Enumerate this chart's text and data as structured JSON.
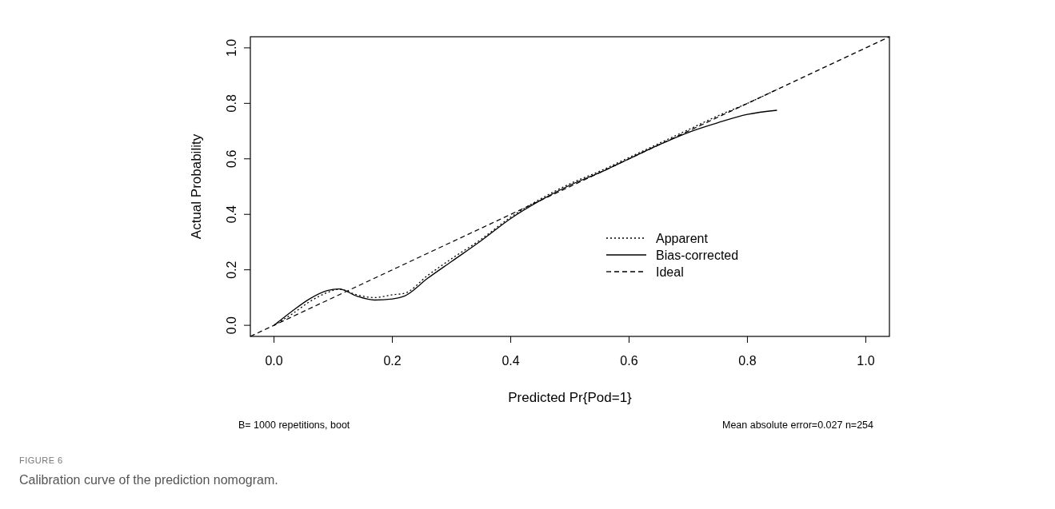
{
  "chart_data": {
    "type": "line",
    "title": "FIGURE 6",
    "subtitle": "Calibration curve of the prediction nomogram.",
    "xlabel": "Predicted Pr{Pod=1}",
    "ylabel": "Actual Probability",
    "annotations": [
      "B= 1000 repetitions, boot",
      "Mean absolute error=0.027 n=254"
    ],
    "xlim": [
      -0.04,
      1.04
    ],
    "ylim": [
      -0.04,
      1.04
    ],
    "xticks": [
      {
        "value": 0,
        "label": "0.0"
      },
      0.2,
      0.4,
      0.6,
      0.8,
      {
        "value": 1,
        "label": "1.0"
      }
    ],
    "yticks": [
      {
        "value": 0,
        "label": "0.0"
      },
      0.2,
      0.4,
      0.6,
      0.8,
      {
        "value": 1,
        "label": "1.0"
      }
    ],
    "grid": false,
    "legend": "bottom right",
    "marker": "none",
    "series": [
      {
        "name": "Apparent",
        "color": "#000000",
        "line_style": "dotted",
        "x": [
          0,
          0.03,
          0.06,
          0.09,
          0.11,
          0.14,
          0.17,
          0.2,
          0.22,
          0.26,
          0.3,
          0.35,
          0.4,
          0.45,
          0.5,
          0.55,
          0.6,
          0.65,
          0.7,
          0.75,
          0.8,
          0.85
        ],
        "values": [
          0,
          0.04,
          0.085,
          0.118,
          0.13,
          0.11,
          0.1,
          0.11,
          0.115,
          0.18,
          0.24,
          0.31,
          0.39,
          0.455,
          0.51,
          0.555,
          0.605,
          0.655,
          0.705,
          0.755,
          0.8,
          0.85
        ]
      },
      {
        "name": "Bias-corrected",
        "color": "#000000",
        "line_style": "solid",
        "x": [
          0,
          0.03,
          0.06,
          0.09,
          0.11,
          0.14,
          0.17,
          0.2,
          0.22,
          0.26,
          0.3,
          0.35,
          0.4,
          0.45,
          0.5,
          0.55,
          0.6,
          0.65,
          0.7,
          0.75,
          0.8,
          0.85
        ],
        "values": [
          0,
          0.05,
          0.095,
          0.125,
          0.131,
          0.105,
          0.091,
          0.095,
          0.105,
          0.17,
          0.23,
          0.305,
          0.385,
          0.45,
          0.505,
          0.55,
          0.6,
          0.65,
          0.695,
          0.73,
          0.76,
          0.775
        ]
      },
      {
        "name": "Ideal",
        "color": "#000000",
        "line_style": "dashed",
        "x": [
          -0.04,
          1.04
        ],
        "values": [
          -0.04,
          1.04
        ]
      }
    ]
  }
}
